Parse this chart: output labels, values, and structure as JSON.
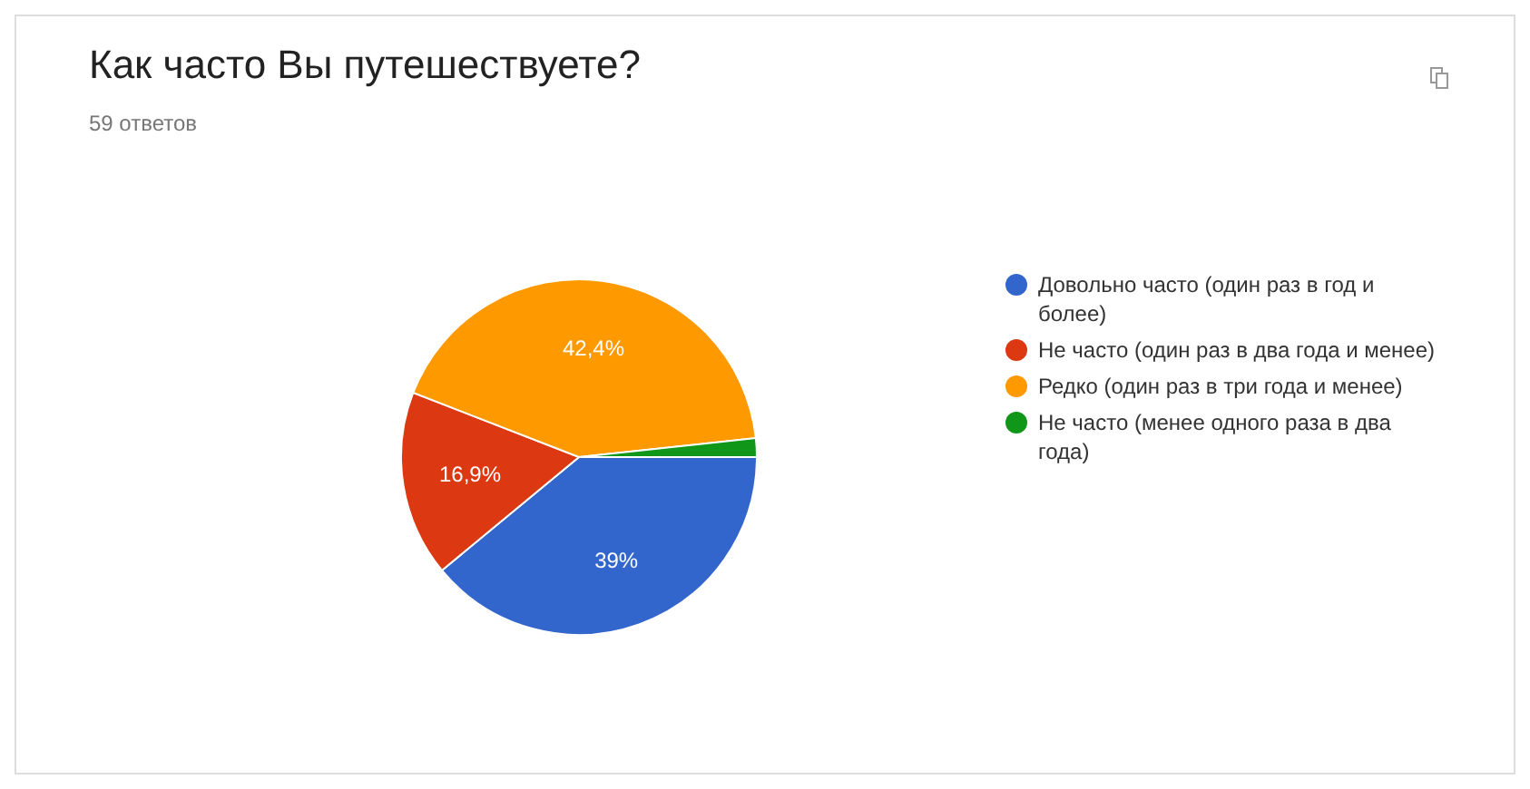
{
  "chart_data": {
    "type": "pie",
    "title": "Как часто Вы путешествуете?",
    "subtitle": "59 ответов",
    "categories": [
      "Довольно часто (один раз в год и более)",
      "Не часто (один раз в два года и менее)",
      "Редко (один раз в три года и менее)",
      "Не часто (менее одного раза в два года)"
    ],
    "values": [
      39,
      16.9,
      42.4,
      1.7
    ],
    "colors": [
      "#3366cc",
      "#dc3912",
      "#ff9900",
      "#109618"
    ],
    "value_labels": [
      "39%",
      "16,9%",
      "42,4%",
      null
    ],
    "legend": "right"
  }
}
